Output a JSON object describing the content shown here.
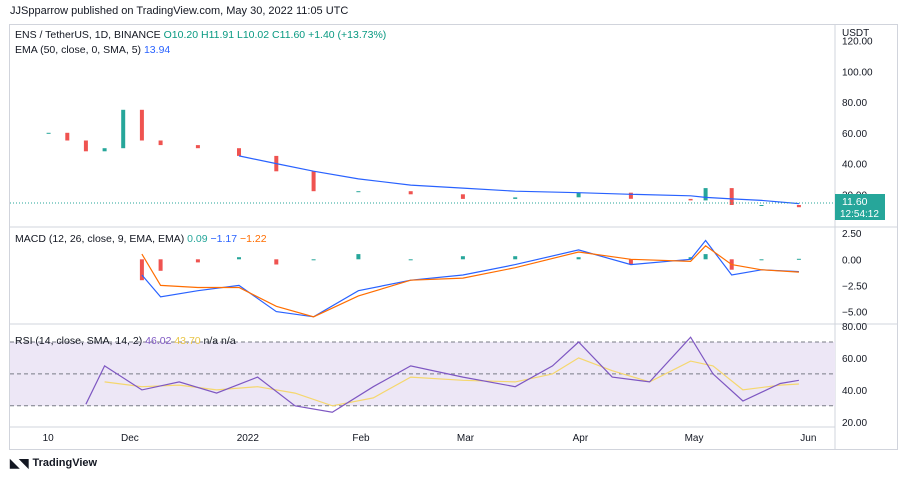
{
  "header": {
    "published": "JJSpparrow published on TradingView.com, May 30, 2022 11:05 UTC"
  },
  "price_pane": {
    "symbol_line": "ENS / TetherUS, 1D, BINANCE",
    "open": "O10.20",
    "high": "H11.91",
    "low": "L10.02",
    "close": "C11.60",
    "change": "+1.40 (+13.73%)",
    "ema_label": "EMA (50, close, 0, SMA, 5)",
    "ema_value": "13.94",
    "currency": "USDT",
    "last_price": "11.60",
    "countdown": "12:54:12",
    "y_ticks": [
      "120.00",
      "100.00",
      "80.00",
      "60.00",
      "40.00",
      "20.00"
    ]
  },
  "macd_pane": {
    "label": "MACD (12, 26, close, 9, EMA, EMA)",
    "hist": "0.09",
    "macd": "−1.17",
    "signal": "−1.22",
    "y_ticks": [
      "2.50",
      "0.00",
      "−2.50",
      "−5.00"
    ]
  },
  "rsi_pane": {
    "label": "RSI (14, close, SMA, 14, 2)",
    "rsi": "46.02",
    "ma": "43.70",
    "extra": "n/a n/a",
    "y_ticks": [
      "80.00",
      "60.00",
      "40.00",
      "20.00"
    ]
  },
  "x_axis": {
    "ticks": [
      "10",
      "Dec",
      "2022",
      "Feb",
      "Mar",
      "Apr",
      "May",
      "Jun"
    ]
  },
  "brand": {
    "name": "TradingView"
  },
  "colors": {
    "up": "#26a69a",
    "down": "#ef5350",
    "ema": "#2962ff",
    "macd": "#2962ff",
    "signal": "#ff6d00",
    "rsi": "#7e57c2",
    "rsi_ma": "#f5d76e",
    "rsi_band": "#ede7f6"
  },
  "chart_data": [
    {
      "type": "candlestick",
      "x": [
        "2021-11-10",
        "2021-11-15",
        "2021-11-20",
        "2021-11-25",
        "2021-11-30",
        "2021-12-05",
        "2021-12-10",
        "2021-12-20",
        "2021-12-31",
        "2022-01-10",
        "2022-01-20",
        "2022-02-01",
        "2022-02-15",
        "2022-03-01",
        "2022-03-15",
        "2022-04-01",
        "2022-04-15",
        "2022-05-01",
        "2022-05-05",
        "2022-05-12",
        "2022-05-20",
        "2022-05-30"
      ],
      "close": [
        60,
        55,
        48,
        50,
        75,
        55,
        52,
        50,
        45,
        35,
        22,
        22,
        20,
        17,
        18,
        21,
        17,
        16,
        24,
        13,
        13,
        11.6
      ],
      "ema_50": [
        null,
        null,
        null,
        null,
        null,
        null,
        null,
        null,
        45,
        40,
        35,
        30,
        26,
        24,
        22,
        21,
        20,
        19,
        18,
        17,
        16,
        13.94
      ],
      "ylim": [
        0,
        125
      ]
    },
    {
      "type": "macd",
      "x": [
        "2021-12-05",
        "2021-12-10",
        "2021-12-20",
        "2021-12-31",
        "2022-01-10",
        "2022-01-20",
        "2022-02-01",
        "2022-02-15",
        "2022-03-01",
        "2022-03-15",
        "2022-04-01",
        "2022-04-15",
        "2022-05-01",
        "2022-05-05",
        "2022-05-12",
        "2022-05-20",
        "2022-05-30"
      ],
      "macd": [
        -1.5,
        -3.6,
        -3.0,
        -2.5,
        -5.0,
        -5.5,
        -3.0,
        -2.0,
        -1.5,
        -0.5,
        0.9,
        -0.5,
        0.0,
        1.8,
        -1.5,
        -1.0,
        -1.17
      ],
      "signal": [
        0.5,
        -2.5,
        -2.7,
        -2.7,
        -4.5,
        -5.5,
        -3.5,
        -2.0,
        -1.8,
        -0.8,
        0.7,
        0.0,
        -0.2,
        1.3,
        -0.5,
        -1.0,
        -1.22
      ],
      "ylim": [
        -6,
        3
      ]
    },
    {
      "type": "rsi",
      "x": [
        "2021-11-20",
        "2021-11-25",
        "2021-12-05",
        "2021-12-15",
        "2021-12-25",
        "2022-01-05",
        "2022-01-15",
        "2022-01-25",
        "2022-02-05",
        "2022-02-15",
        "2022-03-01",
        "2022-03-15",
        "2022-03-25",
        "2022-04-01",
        "2022-04-10",
        "2022-04-20",
        "2022-05-01",
        "2022-05-07",
        "2022-05-15",
        "2022-05-25",
        "2022-05-30"
      ],
      "rsi": [
        31,
        55,
        40,
        45,
        38,
        48,
        30,
        26,
        42,
        55,
        48,
        42,
        55,
        70,
        48,
        45,
        73,
        50,
        33,
        44,
        46.02
      ],
      "rsi_ma": [
        null,
        45,
        42,
        43,
        40,
        42,
        38,
        30,
        35,
        48,
        46,
        45,
        50,
        60,
        52,
        45,
        58,
        55,
        40,
        43,
        43.7
      ],
      "bands": [
        70,
        50,
        30
      ],
      "ylim": [
        18,
        80
      ]
    }
  ]
}
